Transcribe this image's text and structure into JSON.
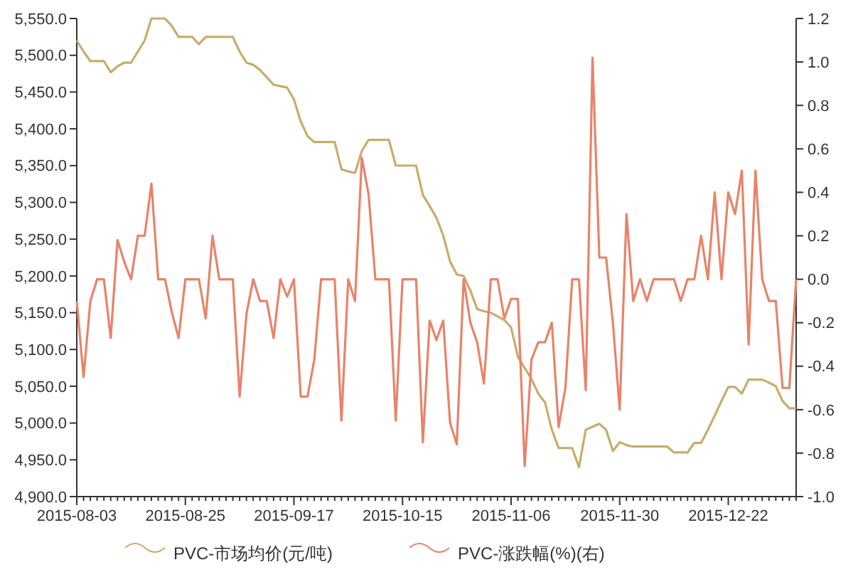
{
  "chart_data": {
    "type": "line",
    "categories": [
      "2015-08-03",
      null,
      null,
      null,
      null,
      null,
      null,
      null,
      null,
      null,
      null,
      null,
      null,
      null,
      null,
      null,
      "2015-08-25",
      null,
      null,
      null,
      null,
      null,
      null,
      null,
      null,
      null,
      null,
      null,
      null,
      null,
      null,
      null,
      "2015-09-17",
      null,
      null,
      null,
      null,
      null,
      null,
      null,
      null,
      null,
      null,
      null,
      null,
      null,
      null,
      null,
      "2015-10-15",
      null,
      null,
      null,
      null,
      null,
      null,
      null,
      null,
      null,
      null,
      null,
      null,
      null,
      null,
      null,
      "2015-11-06",
      null,
      null,
      null,
      null,
      null,
      null,
      null,
      null,
      null,
      null,
      null,
      null,
      null,
      null,
      null,
      "2015-11-30",
      null,
      null,
      null,
      null,
      null,
      null,
      null,
      null,
      null,
      null,
      null,
      null,
      null,
      null,
      null,
      "2015-12-22",
      null,
      null,
      null,
      null,
      null,
      null,
      null,
      null,
      null,
      null
    ],
    "series": [
      {
        "name": "PVC-市场均价(元/吨)",
        "color": "#c9ac6b",
        "values": [
          5520,
          5505,
          5492,
          5492,
          5492,
          5477,
          5485,
          5490,
          5490,
          5505,
          5520,
          5550,
          5550,
          5550,
          5540,
          5525,
          5525,
          5525,
          5515,
          5525,
          5525,
          5525,
          5525,
          5525,
          5505,
          5490,
          5487,
          5480,
          5470,
          5460,
          5458,
          5456,
          5440,
          5410,
          5390,
          5382,
          5382,
          5382,
          5382,
          5345,
          5342,
          5340,
          5370,
          5385,
          5385,
          5385,
          5385,
          5350,
          5350,
          5350,
          5350,
          5310,
          5295,
          5279,
          5255,
          5220,
          5202,
          5200,
          5180,
          5155,
          5152,
          5150,
          5145,
          5140,
          5130,
          5090,
          5075,
          5060,
          5040,
          5028,
          4991,
          4966,
          4966,
          4966,
          4940,
          4991,
          4995,
          4999,
          4991,
          4962,
          4974,
          4970,
          4968,
          4968,
          4968,
          4968,
          4968,
          4968,
          4960,
          4960,
          4960,
          4973,
          4973,
          4991,
          5010,
          5030,
          5049,
          5049,
          5040,
          5059,
          5059,
          5059,
          5055,
          5050,
          5030,
          5020,
          5020
        ]
      },
      {
        "name": "PVC-涨跌幅(%)(右)",
        "color": "#e8836a",
        "axis": "y2",
        "values": [
          -0.1,
          -0.45,
          -0.1,
          0,
          0,
          -0.27,
          0.18,
          0.08,
          0,
          0.2,
          0.2,
          0.44,
          0,
          0,
          -0.15,
          -0.27,
          0,
          0,
          0,
          -0.18,
          0.2,
          0,
          0,
          0,
          -0.54,
          -0.16,
          0,
          -0.1,
          -0.1,
          -0.27,
          0,
          -0.08,
          0,
          -0.54,
          -0.54,
          -0.37,
          0,
          0,
          0,
          -0.65,
          0,
          -0.1,
          0.56,
          0.39,
          0,
          0,
          0,
          -0.65,
          0,
          0,
          0,
          -0.75,
          -0.19,
          -0.28,
          -0.19,
          -0.66,
          -0.76,
          0,
          -0.2,
          -0.29,
          -0.48,
          0,
          0,
          -0.18,
          -0.09,
          -0.09,
          -0.86,
          -0.37,
          -0.29,
          -0.29,
          -0.2,
          -0.68,
          -0.5,
          0,
          0,
          -0.51,
          1.02,
          0.1,
          0.1,
          -0.2,
          -0.6,
          0.3,
          -0.1,
          0,
          -0.1,
          0,
          0,
          0,
          0,
          -0.1,
          0,
          0,
          0.2,
          0,
          0.4,
          0,
          0.4,
          0.3,
          0.5,
          -0.3,
          0.5,
          0,
          -0.1,
          -0.1,
          -0.5,
          -0.5,
          0
        ]
      }
    ],
    "ylim": [
      4900,
      5550
    ],
    "yticks": [
      {
        "value": 4900,
        "label": "4,900.0"
      },
      {
        "value": 4950,
        "label": "4,950.0"
      },
      {
        "value": 5000,
        "label": "5,000.0"
      },
      {
        "value": 5050,
        "label": "5,050.0"
      },
      {
        "value": 5100,
        "label": "5,100.0"
      },
      {
        "value": 5150,
        "label": "5,150.0"
      },
      {
        "value": 5200,
        "label": "5,200.0"
      },
      {
        "value": 5250,
        "label": "5,250.0"
      },
      {
        "value": 5300,
        "label": "5,300.0"
      },
      {
        "value": 5350,
        "label": "5,350.0"
      },
      {
        "value": 5400,
        "label": "5,400.0"
      },
      {
        "value": 5450,
        "label": "5,450.0"
      },
      {
        "value": 5500,
        "label": "5,500.0"
      },
      {
        "value": 5550,
        "label": "5,550.0"
      }
    ],
    "y2lim": [
      -1.0,
      1.2
    ],
    "y2ticks": [
      {
        "value": -1.0,
        "label": "-1.0"
      },
      {
        "value": -0.8,
        "label": "-0.8"
      },
      {
        "value": -0.6,
        "label": "-0.6"
      },
      {
        "value": -0.4,
        "label": "-0.4"
      },
      {
        "value": -0.2,
        "label": "-0.2"
      },
      {
        "value": 0,
        "label": "0.0"
      },
      {
        "value": 0.2,
        "label": "0.2"
      },
      {
        "value": 0.4,
        "label": "0.4"
      },
      {
        "value": 0.6,
        "label": "0.6"
      },
      {
        "value": 0.8,
        "label": "0.8"
      },
      {
        "value": 1.0,
        "label": "1.0"
      },
      {
        "value": 1.2,
        "label": "1.2"
      }
    ],
    "legend": "bottom",
    "grid": false,
    "line_style": "solid"
  }
}
